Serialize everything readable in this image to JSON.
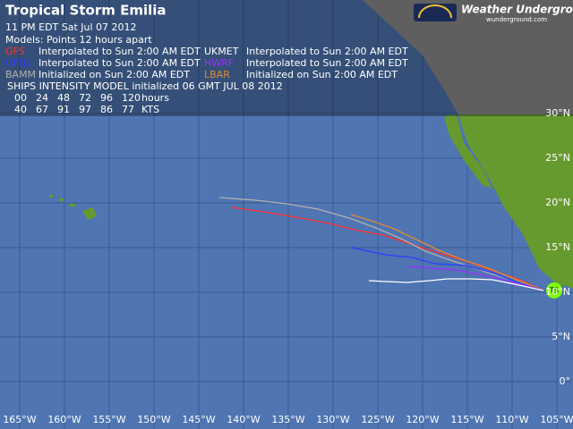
{
  "header": {
    "title": "Tropical Storm Emilia",
    "timestamp": "11 PM EDT Sat Jul 07 2012",
    "models_label": "Models:  Points 12 hours apart"
  },
  "models": [
    {
      "name": "GFS",
      "color": "#ff3030",
      "note": "Interpolated to Sun 2:00 AM EDT"
    },
    {
      "name": "UKMET",
      "color": "#ffffff",
      "note": "Interpolated to Sun 2:00 AM EDT"
    },
    {
      "name": "GFDL",
      "color": "#2b3cff",
      "note": "Interpolated to Sun 2:00 AM EDT"
    },
    {
      "name": "HWRF",
      "color": "#9a30ff",
      "note": "Interpolated to Sun 2:00 AM EDT"
    },
    {
      "name": "BAMM",
      "color": "#b0b0b0",
      "note": "Initialized on Sun 2:00 AM EDT"
    },
    {
      "name": "LBAR",
      "color": "#e08a30",
      "note": "Initialized on Sun 2:00 AM EDT"
    }
  ],
  "ships": {
    "title": "SHIPS INTENSITY MODEL initialized 06 GMT JUL 08 2012",
    "hours": [
      "00",
      "24",
      "48",
      "72",
      "96",
      "120"
    ],
    "hours_unit": "hours",
    "winds": [
      "40",
      "67",
      "91",
      "97",
      "86",
      "77"
    ],
    "winds_unit": "KTS"
  },
  "logo": {
    "name": "Weather Underground",
    "site": "wunderground.com"
  },
  "storm_marker": "TS",
  "latitude_labels": [
    "30°N",
    "25°N",
    "20°N",
    "15°N",
    "10°N",
    "5°N",
    "0°"
  ],
  "longitude_labels": [
    "165°W",
    "160°W",
    "155°W",
    "150°W",
    "145°W",
    "140°W",
    "135°W",
    "130°W",
    "125°W",
    "120°W",
    "115°W",
    "110°W",
    "105°W"
  ]
}
